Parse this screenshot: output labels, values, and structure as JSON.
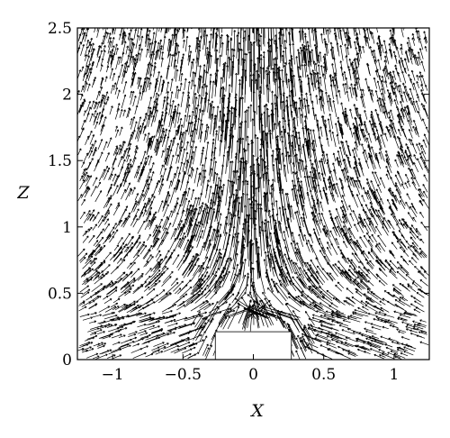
{
  "chart_data": {
    "type": "vector_field",
    "xlabel": "X",
    "ylabel": "Z",
    "xlim": [
      -1.25,
      1.25
    ],
    "ylim": [
      0,
      2.5
    ],
    "xticks": [
      -1,
      -0.5,
      0,
      0.5,
      1
    ],
    "xtick_labels": [
      "−1",
      "−0.5",
      "0",
      "0.5",
      "1"
    ],
    "yticks": [
      0,
      0.5,
      1,
      1.5,
      2,
      2.5
    ],
    "ytick_labels": [
      "0",
      "0.5",
      "1",
      "1.5",
      "2",
      "2.5"
    ],
    "obstacle": {
      "x_min": -0.27,
      "x_max": 0.27,
      "z_min": 0,
      "z_max": 0.21
    },
    "grid": false,
    "colors": {
      "vectors": "#000000",
      "background": "#ffffff",
      "obstacle": "#ffffff"
    }
  }
}
